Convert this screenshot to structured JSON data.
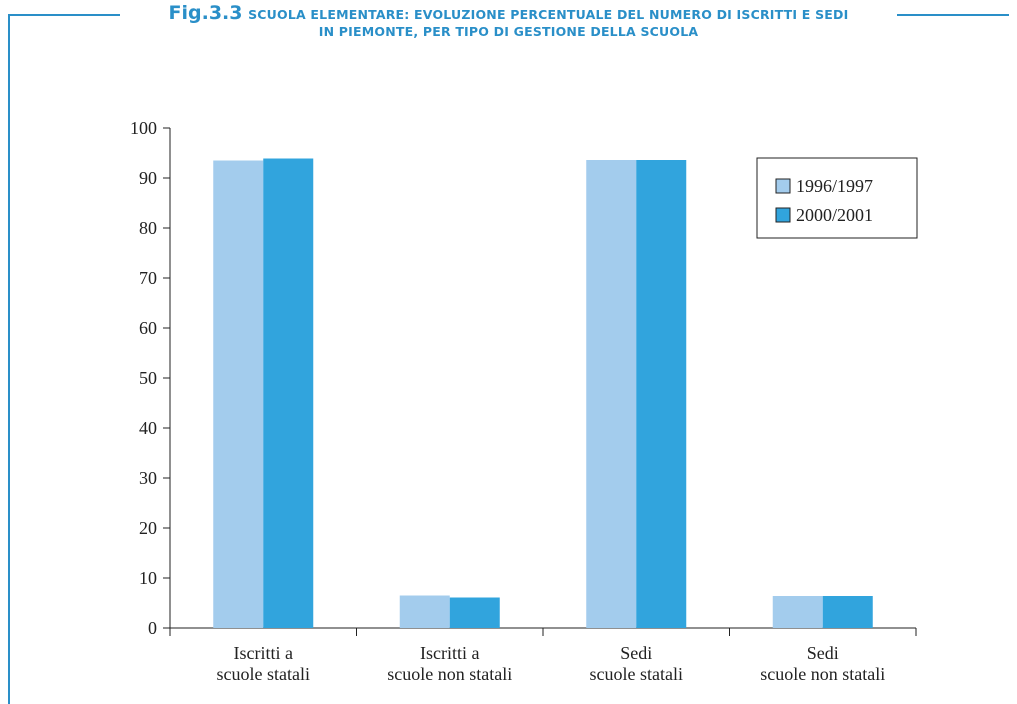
{
  "caption": {
    "fig_number": "Fig.3.3",
    "title_line1": "SCUOLA ELEMENTARE: EVOLUZIONE PERCENTUALE DEL NUMERO DI ISCRITTI E SEDI",
    "title_line2": "IN PIEMONTE, PER TIPO DI GESTIONE DELLA SCUOLA"
  },
  "colors": {
    "frame": "#2a8fc8",
    "series_1": "#a3cced",
    "series_2": "#31a4dd"
  },
  "chart_data": {
    "type": "bar",
    "categories": [
      [
        "Iscritti a",
        "scuole statali"
      ],
      [
        "Iscritti a",
        "scuole non statali"
      ],
      [
        "Sedi",
        "scuole statali"
      ],
      [
        "Sedi",
        "scuole non statali"
      ]
    ],
    "series": [
      {
        "name": "1996/1997",
        "values": [
          93.5,
          6.5,
          93.6,
          6.4
        ]
      },
      {
        "name": "2000/2001",
        "values": [
          93.9,
          6.1,
          93.6,
          6.4
        ]
      }
    ],
    "ylim": [
      0,
      100
    ],
    "yticks": [
      0,
      10,
      20,
      30,
      40,
      50,
      60,
      70,
      80,
      90,
      100
    ],
    "legend_position": "top-right",
    "grid": false
  }
}
